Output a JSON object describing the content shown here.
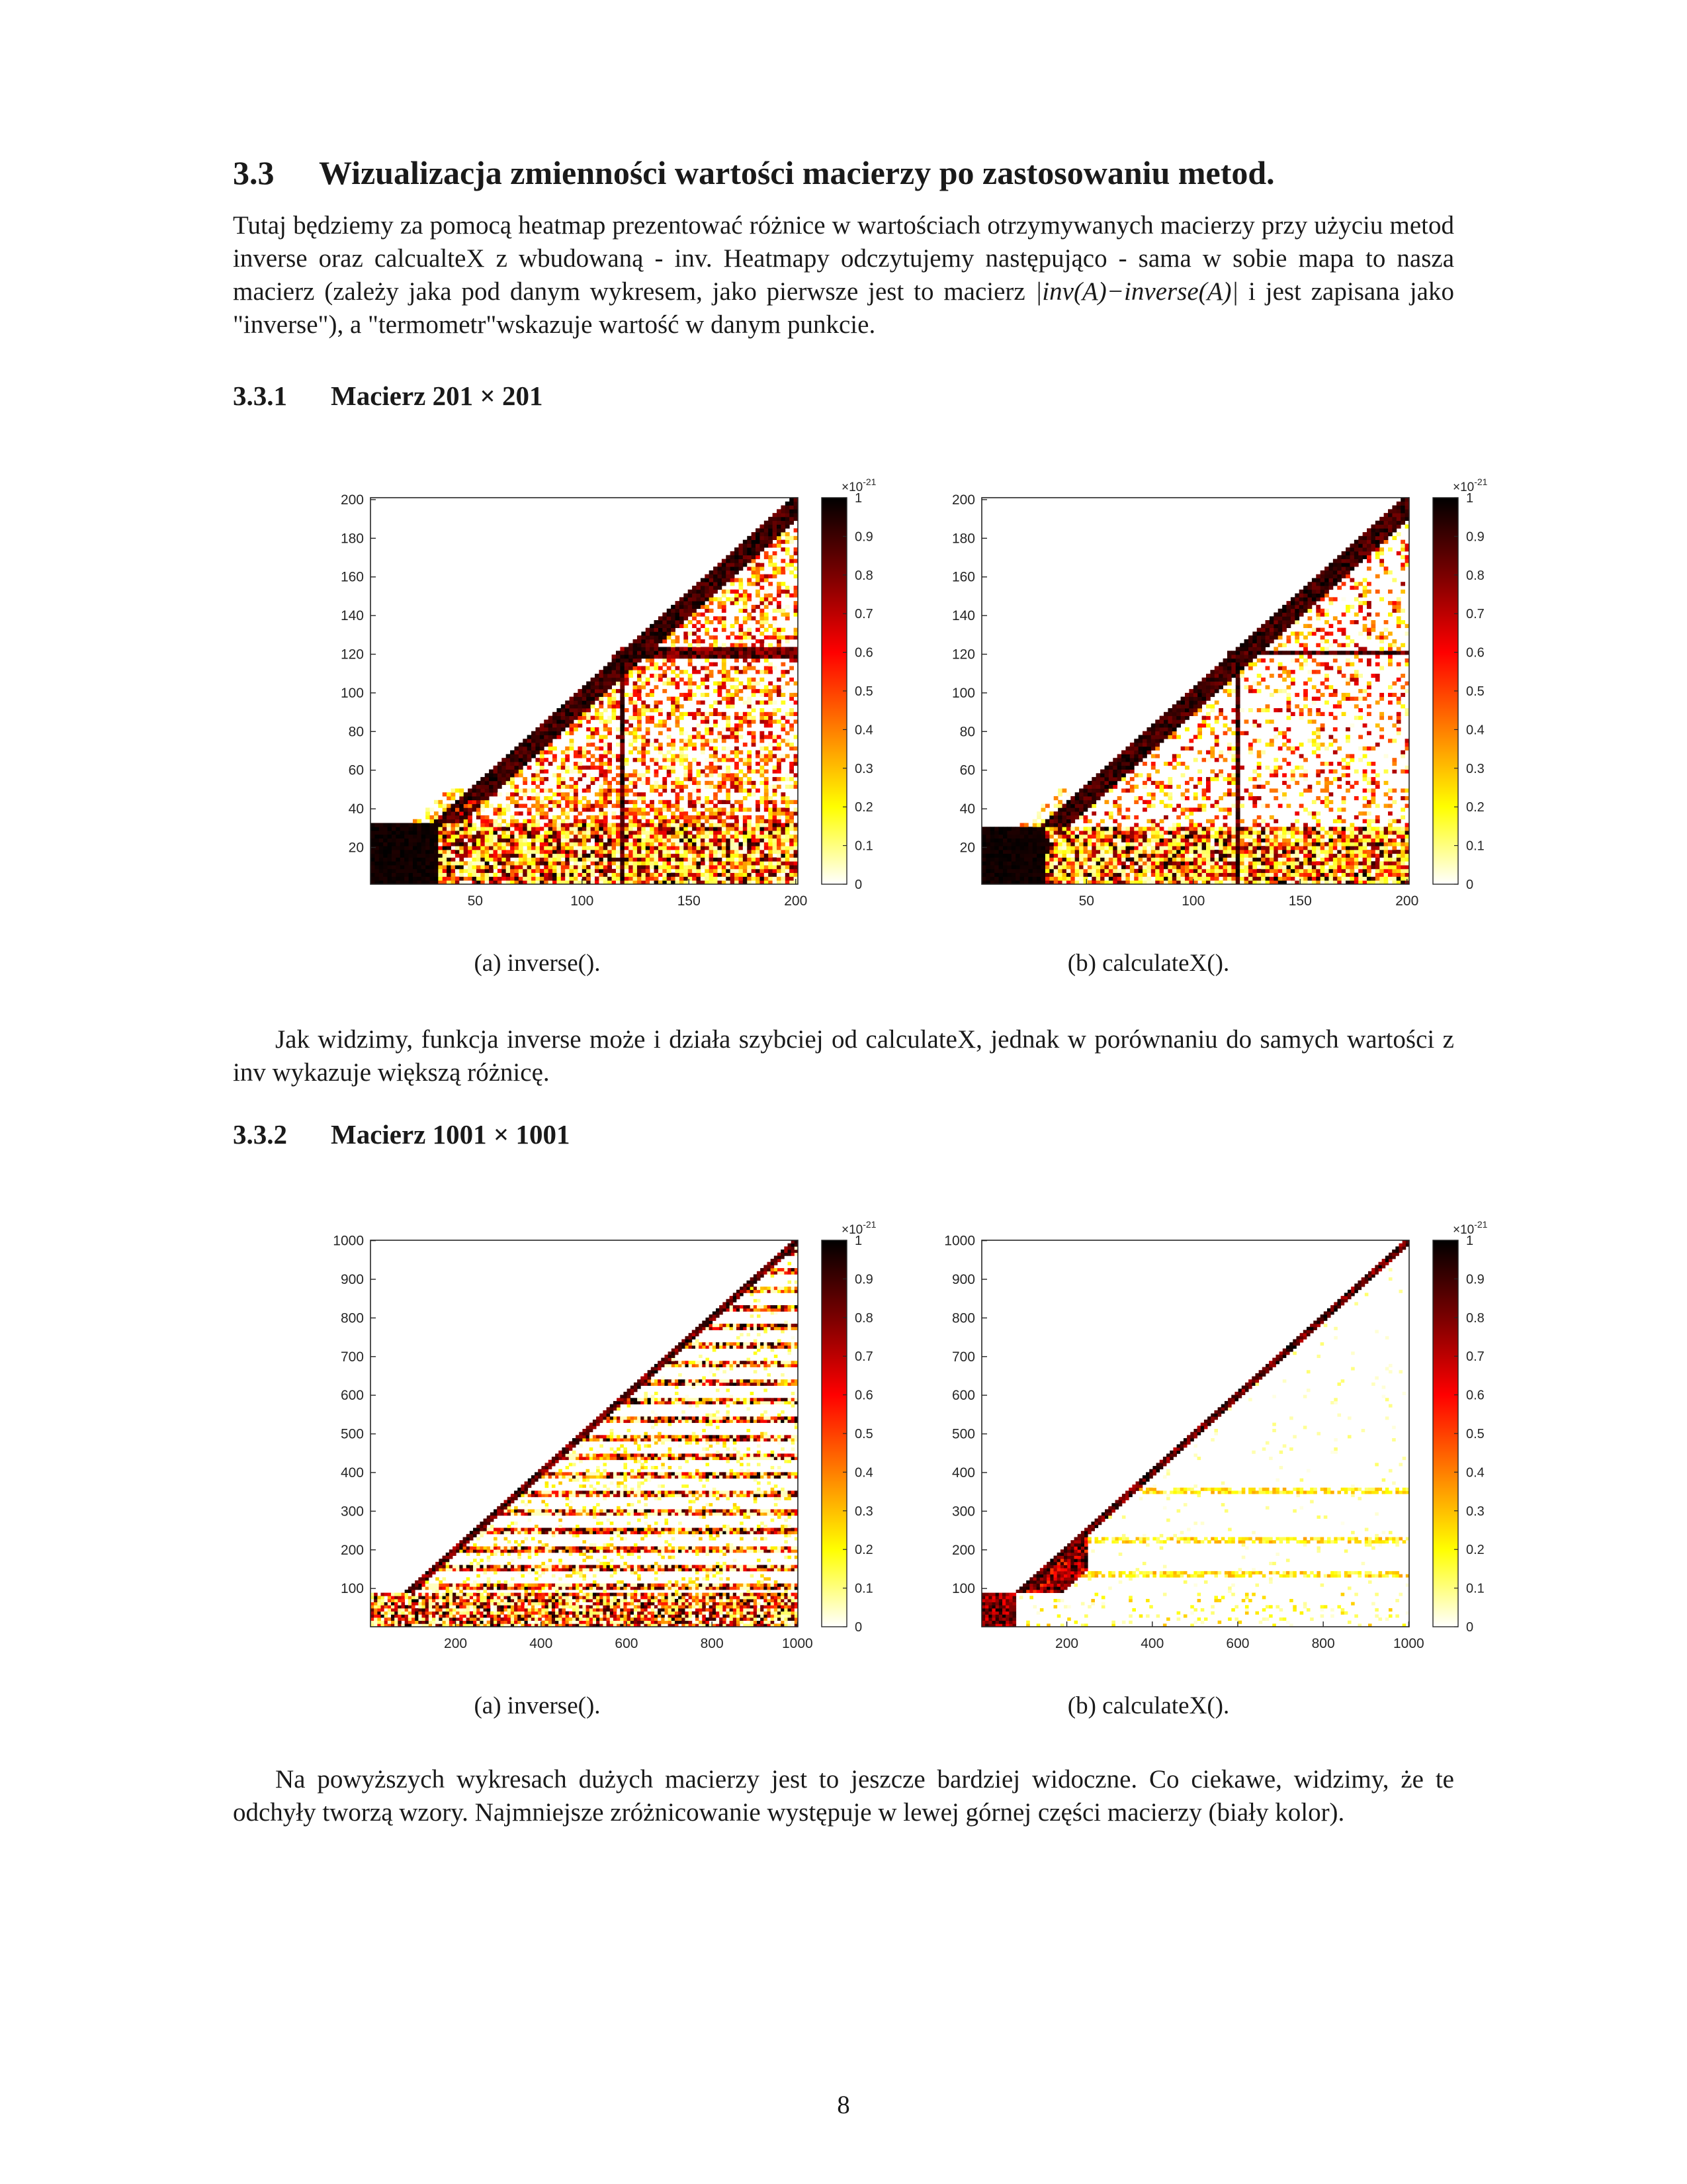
{
  "section": {
    "number": "3.3",
    "title": "Wizualizacja zmienności wartości macierzy po zastosowaniu metod."
  },
  "intro": {
    "text_before_math": "Tutaj będziemy za pomocą heatmap prezentować różnice w wartościach otrzymywanych macierzy przy użyciu metod inverse oraz calcualteX z wbudowaną - inv. Heatmapy odczytujemy następująco - sama w sobie mapa to nasza macierz (zależy jaka pod danym wykresem, jako pierwsze jest to macierz ",
    "math": "|inv(A)−inverse(A)|",
    "text_after_math": " i jest zapisana jako \"inverse\"), a \"termometr\"wskazuje wartość w danym punkcie."
  },
  "subsection1": {
    "number": "3.3.1",
    "title": "Macierz 201 × 201"
  },
  "subsection2": {
    "number": "3.3.2",
    "title": "Macierz 1001 × 1001"
  },
  "paragraph2": "Jak widzimy, funkcja inverse może i działa szybciej od calculateX, jednak w porównaniu do samych wartości z inv wykazuje większą różnicę.",
  "paragraph3": "Na powyższych wykresach dużych macierzy jest to jeszcze bardziej widoczne. Co ciekawe, widzimy, że te odchyły tworzą wzory. Najmniejsze zróżnicowanie występuje w lewej górnej części macierzy (biały kolor).",
  "page_number": "8",
  "colorbar": {
    "exponent_label": "×10",
    "exponent_power": "-21",
    "ticks": [
      "0",
      "0.1",
      "0.2",
      "0.3",
      "0.4",
      "0.5",
      "0.6",
      "0.7",
      "0.8",
      "0.9",
      "1"
    ],
    "colormap": "hot (reversed)",
    "colors": [
      "#ffffff",
      "#ffff00",
      "#ff7f00",
      "#ff0000",
      "#7a0000",
      "#000000"
    ]
  },
  "chart_data": [
    {
      "type": "heatmap",
      "caption": "(a) inverse().",
      "matrix_size": 201,
      "xlim": [
        1,
        201
      ],
      "ylim": [
        1,
        201
      ],
      "xticks": [
        "50",
        "100",
        "150",
        "200"
      ],
      "yticks": [
        "20",
        "40",
        "60",
        "80",
        "100",
        "120",
        "140",
        "160",
        "180",
        "200"
      ],
      "clim": [
        0,
        1
      ],
      "value_scale": "1e-21"
    },
    {
      "type": "heatmap",
      "caption": "(b) calculateX().",
      "matrix_size": 201,
      "xlim": [
        1,
        201
      ],
      "ylim": [
        1,
        201
      ],
      "xticks": [
        "50",
        "100",
        "150",
        "200"
      ],
      "yticks": [
        "20",
        "40",
        "60",
        "80",
        "100",
        "120",
        "140",
        "160",
        "180",
        "200"
      ],
      "clim": [
        0,
        1
      ],
      "value_scale": "1e-21"
    },
    {
      "type": "heatmap",
      "caption": "(a) inverse().",
      "matrix_size": 1001,
      "xlim": [
        1,
        1001
      ],
      "ylim": [
        1,
        1001
      ],
      "xticks": [
        "200",
        "400",
        "600",
        "800",
        "1000"
      ],
      "yticks": [
        "100",
        "200",
        "300",
        "400",
        "500",
        "600",
        "700",
        "800",
        "900",
        "1000"
      ],
      "clim": [
        0,
        1
      ],
      "value_scale": "1e-21"
    },
    {
      "type": "heatmap",
      "caption": "(b) calculateX().",
      "matrix_size": 1001,
      "xlim": [
        1,
        1001
      ],
      "ylim": [
        1,
        1001
      ],
      "xticks": [
        "200",
        "400",
        "600",
        "800",
        "1000"
      ],
      "yticks": [
        "100",
        "200",
        "300",
        "400",
        "500",
        "600",
        "700",
        "800",
        "900",
        "1000"
      ],
      "clim": [
        0,
        1
      ],
      "value_scale": "1e-21"
    }
  ]
}
